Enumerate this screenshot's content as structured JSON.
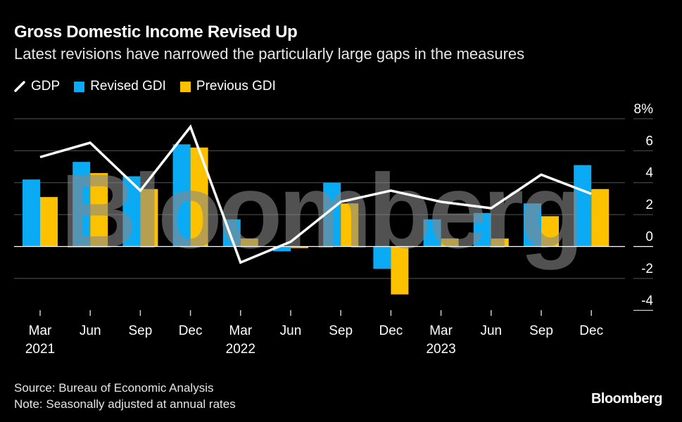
{
  "title": "Gross Domestic Income Revised Up",
  "subtitle": "Latest revisions have narrowed the particularly large gaps in the measures",
  "footer": {
    "source": "Source: Bureau of Economic Analysis",
    "note": "Note: Seasonally adjusted at annual rates"
  },
  "logo": "Bloomberg",
  "watermark": "Bloomberg",
  "colors": {
    "gdp": "#ffffff",
    "revised_gdi": "#0aaaf5",
    "previous_gdi": "#fcc200",
    "background": "#000000",
    "grid": "#555555"
  },
  "chart_data": {
    "type": "bar",
    "legend_position": "top-left",
    "grid": true,
    "ylim": [
      -4,
      8
    ],
    "yticks": [
      -4,
      -2,
      0,
      2,
      4,
      6,
      8
    ],
    "ytick_labels": [
      "-4",
      "-2",
      "0",
      "2",
      "4",
      "6",
      "8%"
    ],
    "categories": [
      "Mar 2021",
      "Jun 2021",
      "Sep 2021",
      "Dec 2021",
      "Mar 2022",
      "Jun 2022",
      "Sep 2022",
      "Dec 2022",
      "Mar 2023",
      "Jun 2023",
      "Sep 2023",
      "Dec 2023"
    ],
    "x_month_labels": [
      "Mar",
      "Jun",
      "Sep",
      "Dec",
      "Mar",
      "Jun",
      "Sep",
      "Dec",
      "Mar",
      "Jun",
      "Sep",
      "Dec"
    ],
    "x_year_labels": [
      "2021",
      "",
      "",
      "",
      "2022",
      "",
      "",
      "",
      "2023",
      "",
      "",
      ""
    ],
    "series": [
      {
        "name": "GDP",
        "type": "line",
        "values": [
          5.6,
          6.5,
          3.5,
          7.5,
          -1.0,
          0.3,
          2.8,
          3.5,
          2.8,
          2.4,
          4.5,
          3.3
        ]
      },
      {
        "name": "Revised GDI",
        "type": "bar",
        "values": [
          4.2,
          5.3,
          4.4,
          6.4,
          1.7,
          -0.3,
          4.0,
          -1.4,
          1.7,
          2.1,
          2.7,
          5.1
        ]
      },
      {
        "name": "Previous GDI",
        "type": "bar",
        "values": [
          3.1,
          4.6,
          3.6,
          6.2,
          0.5,
          -0.1,
          2.7,
          -3.0,
          0.5,
          0.5,
          1.9,
          3.6
        ]
      }
    ]
  }
}
